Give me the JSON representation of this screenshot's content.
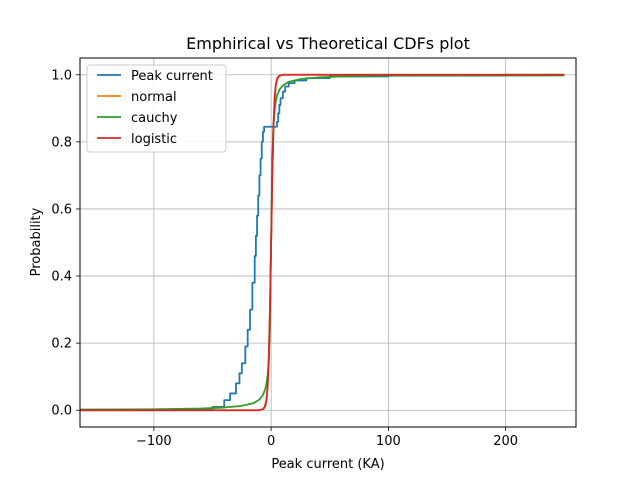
{
  "chart_data": {
    "type": "line",
    "title": "Emphirical vs Theoretical CDFs plot",
    "xlabel": "Peak current (KA)",
    "ylabel": "Probability",
    "xlim": [
      -163,
      260
    ],
    "ylim": [
      -0.05,
      1.05
    ],
    "xticks": [
      -100,
      0,
      100,
      200
    ],
    "xtick_labels": [
      "−100",
      "0",
      "100",
      "200"
    ],
    "yticks": [
      0.0,
      0.2,
      0.4,
      0.6,
      0.8,
      1.0
    ],
    "ytick_labels": [
      "0.0",
      "0.2",
      "0.4",
      "0.6",
      "0.8",
      "1.0"
    ],
    "grid": true,
    "legend_position": "upper-left",
    "series": [
      {
        "name": "Peak current",
        "color": "#1f77b4",
        "x": [
          -163,
          -80,
          -60,
          -50,
          -40,
          -35,
          -30,
          -27,
          -25,
          -22,
          -20,
          -18,
          -16,
          -14,
          -13,
          -12,
          -11,
          -10,
          -9,
          -8,
          -7,
          -6,
          -5,
          0,
          1,
          2,
          3,
          4,
          5,
          6,
          7,
          8,
          10,
          12,
          15,
          20,
          30,
          50,
          100,
          150,
          200,
          250
        ],
        "y": [
          0.0,
          0.001,
          0.004,
          0.01,
          0.03,
          0.05,
          0.08,
          0.11,
          0.14,
          0.19,
          0.24,
          0.3,
          0.38,
          0.46,
          0.52,
          0.58,
          0.64,
          0.7,
          0.75,
          0.8,
          0.83,
          0.845,
          0.845,
          0.845,
          0.845,
          0.845,
          0.845,
          0.845,
          0.86,
          0.885,
          0.91,
          0.93,
          0.95,
          0.965,
          0.975,
          0.983,
          0.99,
          0.995,
          0.998,
          0.999,
          1.0,
          1.0
        ]
      },
      {
        "name": "normal",
        "color": "#ff7f0e",
        "x": [
          -163,
          -10,
          -6,
          -4,
          -3,
          -2,
          -1,
          0,
          1,
          2,
          3,
          4,
          6,
          10,
          250
        ],
        "y": [
          0.0,
          0.0,
          0.005,
          0.03,
          0.07,
          0.16,
          0.3,
          0.5,
          0.7,
          0.84,
          0.93,
          0.97,
          0.995,
          1.0,
          1.0
        ]
      },
      {
        "name": "cauchy",
        "color": "#2ca02c",
        "x": [
          -163,
          -100,
          -60,
          -40,
          -25,
          -15,
          -10,
          -7,
          -5,
          -4,
          -3,
          -2,
          -1,
          0,
          1,
          2,
          3,
          4,
          5,
          7,
          10,
          15,
          25,
          40,
          60,
          100,
          250
        ],
        "y": [
          0.002,
          0.003,
          0.005,
          0.008,
          0.013,
          0.021,
          0.032,
          0.045,
          0.063,
          0.079,
          0.104,
          0.148,
          0.25,
          0.5,
          0.75,
          0.852,
          0.896,
          0.921,
          0.937,
          0.955,
          0.968,
          0.979,
          0.987,
          0.992,
          0.995,
          0.997,
          0.998
        ]
      },
      {
        "name": "logistic",
        "color": "#d62728",
        "x": [
          -163,
          -20,
          -10,
          -7,
          -5,
          -4,
          -3,
          -2,
          -1,
          0,
          1,
          2,
          3,
          4,
          5,
          7,
          10,
          20,
          250
        ],
        "y": [
          0.0,
          0.0,
          0.0,
          0.003,
          0.012,
          0.03,
          0.07,
          0.15,
          0.3,
          0.5,
          0.7,
          0.85,
          0.93,
          0.97,
          0.988,
          0.997,
          1.0,
          1.0,
          1.0
        ]
      }
    ]
  }
}
